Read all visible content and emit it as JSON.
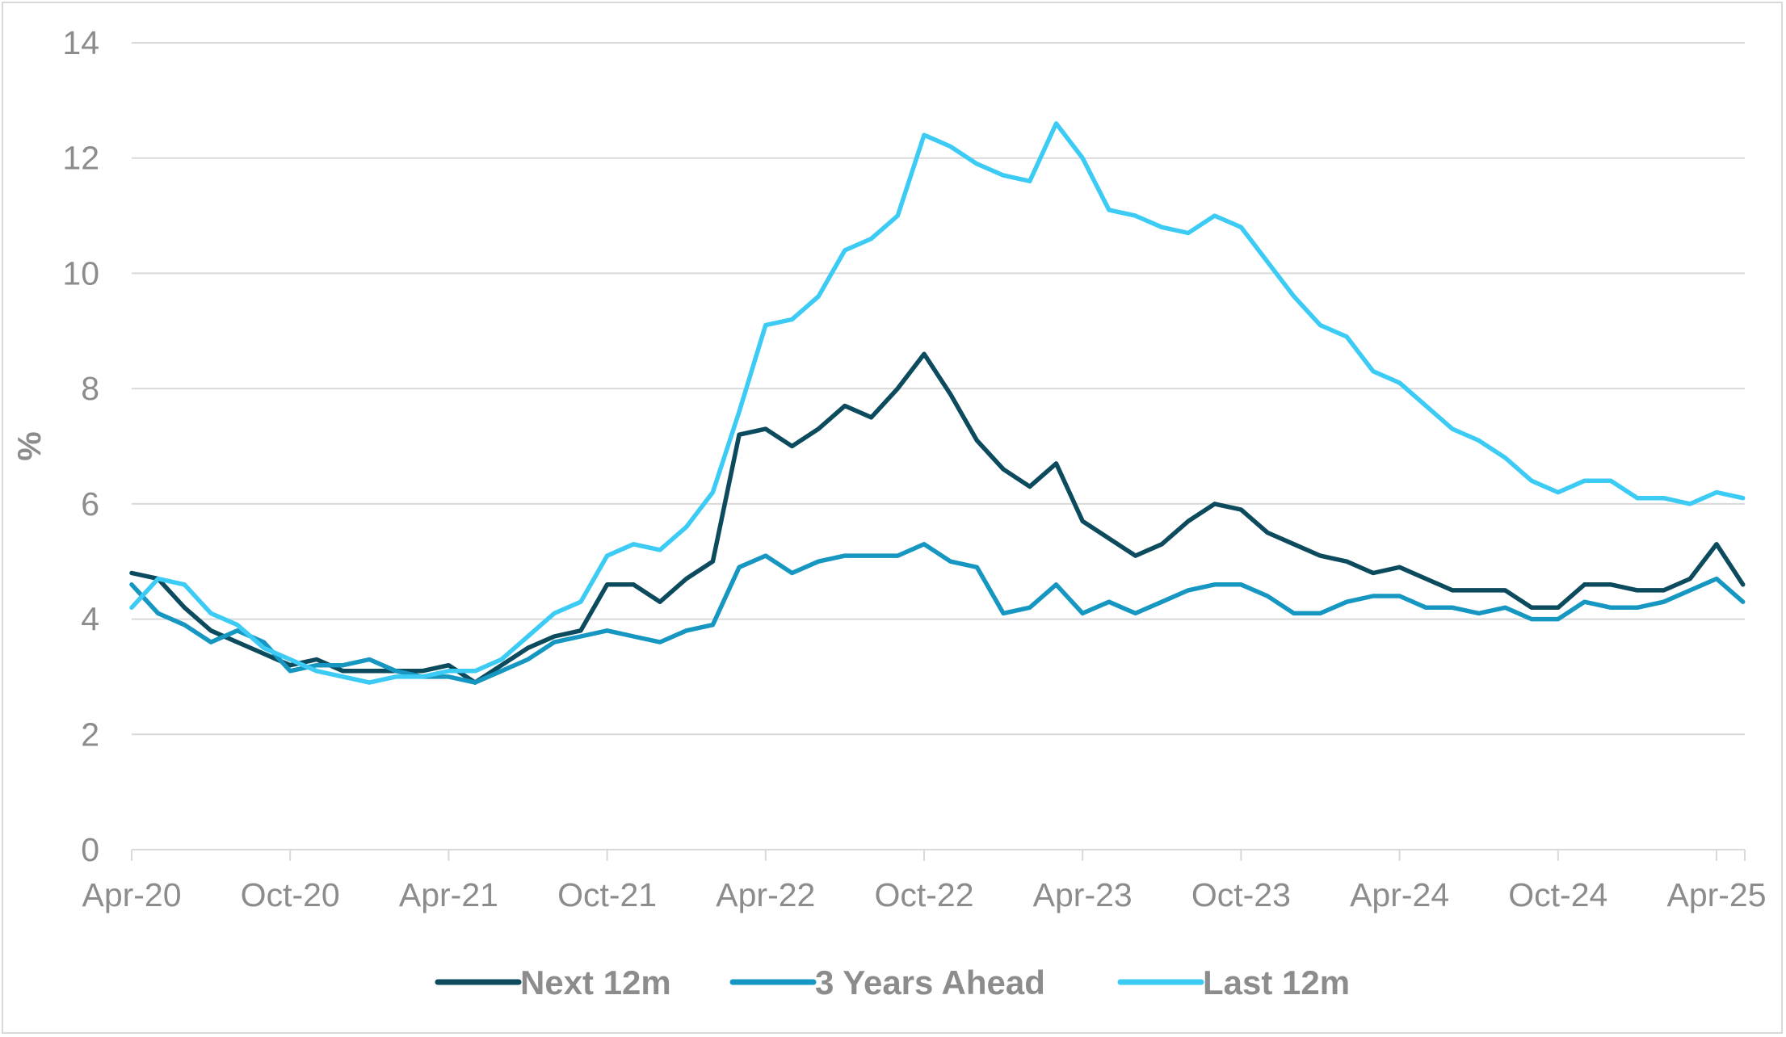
{
  "chart_data": {
    "type": "line",
    "title": "",
    "xlabel": "",
    "ylabel": "%",
    "ylim": [
      0,
      14
    ],
    "yticks": [
      0,
      2,
      4,
      6,
      8,
      10,
      12,
      14
    ],
    "grid": "horizontal",
    "legend_position": "bottom",
    "x_tick_labels": [
      "Apr-20",
      "Oct-20",
      "Apr-21",
      "Oct-21",
      "Apr-22",
      "Oct-22",
      "Apr-23",
      "Oct-23",
      "Apr-24",
      "Oct-24",
      "Apr-25"
    ],
    "x_start": "Apr-20",
    "x_end": "May-25",
    "series": [
      {
        "name": "Next 12m",
        "color": "#0c4a5e",
        "values": [
          4.8,
          4.7,
          4.2,
          3.8,
          3.6,
          3.4,
          3.2,
          3.3,
          3.1,
          3.1,
          3.1,
          3.1,
          3.2,
          2.9,
          3.2,
          3.5,
          3.7,
          3.8,
          4.6,
          4.6,
          4.3,
          4.7,
          5.0,
          7.2,
          7.3,
          7.0,
          7.3,
          7.7,
          7.5,
          8.0,
          8.6,
          7.9,
          7.1,
          6.6,
          6.3,
          6.7,
          5.7,
          5.4,
          5.1,
          5.3,
          5.7,
          6.0,
          5.9,
          5.5,
          5.3,
          5.1,
          5.0,
          4.8,
          4.9,
          4.7,
          4.5,
          4.5,
          4.5,
          4.2,
          4.2,
          4.6,
          4.6,
          4.5,
          4.5,
          4.7,
          5.3,
          4.6
        ]
      },
      {
        "name": "3 Years Ahead",
        "color": "#1597c2",
        "values": [
          4.6,
          4.1,
          3.9,
          3.6,
          3.8,
          3.6,
          3.1,
          3.2,
          3.2,
          3.3,
          3.1,
          3.0,
          3.0,
          2.9,
          3.1,
          3.3,
          3.6,
          3.7,
          3.8,
          3.7,
          3.6,
          3.8,
          3.9,
          4.9,
          5.1,
          4.8,
          5.0,
          5.1,
          5.1,
          5.1,
          5.3,
          5.0,
          4.9,
          4.1,
          4.2,
          4.6,
          4.1,
          4.3,
          4.1,
          4.3,
          4.5,
          4.6,
          4.6,
          4.4,
          4.1,
          4.1,
          4.3,
          4.4,
          4.4,
          4.2,
          4.2,
          4.1,
          4.2,
          4.0,
          4.0,
          4.3,
          4.2,
          4.2,
          4.3,
          4.5,
          4.7,
          4.3
        ]
      },
      {
        "name": "Last 12m",
        "color": "#3ccbf4",
        "values": [
          4.2,
          4.7,
          4.6,
          4.1,
          3.9,
          3.5,
          3.3,
          3.1,
          3.0,
          2.9,
          3.0,
          3.0,
          3.1,
          3.1,
          3.3,
          3.7,
          4.1,
          4.3,
          5.1,
          5.3,
          5.2,
          5.6,
          6.2,
          7.6,
          9.1,
          9.2,
          9.6,
          10.4,
          10.6,
          11.0,
          12.4,
          12.2,
          11.9,
          11.7,
          11.6,
          12.6,
          12.0,
          11.1,
          11.0,
          10.8,
          10.7,
          11.0,
          10.8,
          10.2,
          9.6,
          9.1,
          8.9,
          8.3,
          8.1,
          7.7,
          7.3,
          7.1,
          6.8,
          6.4,
          6.2,
          6.4,
          6.4,
          6.1,
          6.1,
          6.0,
          6.2,
          6.1
        ]
      }
    ]
  }
}
